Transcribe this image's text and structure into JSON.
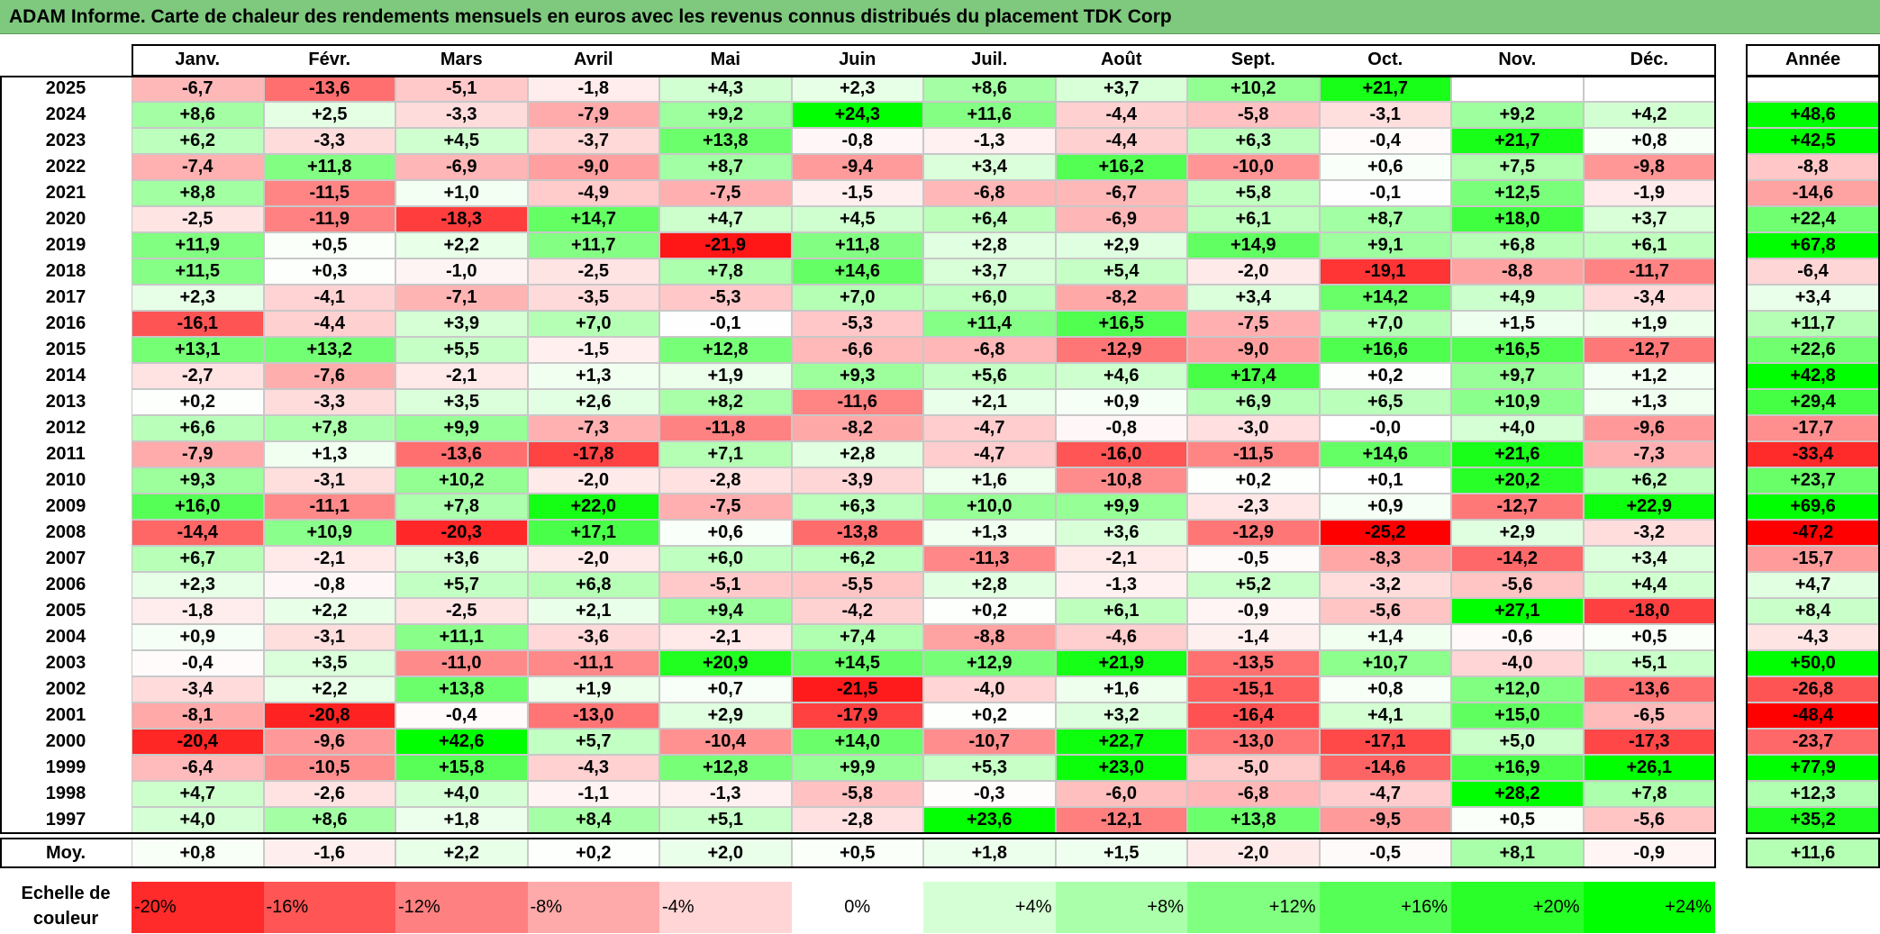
{
  "title": "ADAM Informe. Carte de chaleur des rendements mensuels en euros avec les revenus connus distribués du placement TDK Corp",
  "colors": {
    "title_bg": "#7fc97f",
    "positive": "#00ff00",
    "negative": "#ff0000",
    "neutral": "#ffffff"
  },
  "chart_data": {
    "type": "heatmap",
    "months": [
      "Janv.",
      "Févr.",
      "Mars",
      "Avril",
      "Mai",
      "Juin",
      "Juil.",
      "Août",
      "Sept.",
      "Oct.",
      "Nov.",
      "Déc."
    ],
    "year_header": "Année",
    "rows": [
      {
        "year": "2025",
        "values": [
          "-6,7",
          "-13,6",
          "-5,1",
          "-1,8",
          "+4,3",
          "+2,3",
          "+8,6",
          "+3,7",
          "+10,2",
          "+21,7",
          "",
          ""
        ],
        "annual": ""
      },
      {
        "year": "2024",
        "values": [
          "+8,6",
          "+2,5",
          "-3,3",
          "-7,9",
          "+9,2",
          "+24,3",
          "+11,6",
          "-4,4",
          "-5,8",
          "-3,1",
          "+9,2",
          "+4,2"
        ],
        "annual": "+48,6"
      },
      {
        "year": "2023",
        "values": [
          "+6,2",
          "-3,3",
          "+4,5",
          "-3,7",
          "+13,8",
          "-0,8",
          "-1,3",
          "-4,4",
          "+6,3",
          "-0,4",
          "+21,7",
          "+0,8"
        ],
        "annual": "+42,5"
      },
      {
        "year": "2022",
        "values": [
          "-7,4",
          "+11,8",
          "-6,9",
          "-9,0",
          "+8,7",
          "-9,4",
          "+3,4",
          "+16,2",
          "-10,0",
          "+0,6",
          "+7,5",
          "-9,8"
        ],
        "annual": "-8,8"
      },
      {
        "year": "2021",
        "values": [
          "+8,8",
          "-11,5",
          "+1,0",
          "-4,9",
          "-7,5",
          "-1,5",
          "-6,8",
          "-6,7",
          "+5,8",
          "-0,1",
          "+12,5",
          "-1,9"
        ],
        "annual": "-14,6"
      },
      {
        "year": "2020",
        "values": [
          "-2,5",
          "-11,9",
          "-18,3",
          "+14,7",
          "+4,7",
          "+4,5",
          "+6,4",
          "-6,9",
          "+6,1",
          "+8,7",
          "+18,0",
          "+3,7"
        ],
        "annual": "+22,4"
      },
      {
        "year": "2019",
        "values": [
          "+11,9",
          "+0,5",
          "+2,2",
          "+11,7",
          "-21,9",
          "+11,8",
          "+2,8",
          "+2,9",
          "+14,9",
          "+9,1",
          "+6,8",
          "+6,1"
        ],
        "annual": "+67,8"
      },
      {
        "year": "2018",
        "values": [
          "+11,5",
          "+0,3",
          "-1,0",
          "-2,5",
          "+7,8",
          "+14,6",
          "+3,7",
          "+5,4",
          "-2,0",
          "-19,1",
          "-8,8",
          "-11,7"
        ],
        "annual": "-6,4"
      },
      {
        "year": "2017",
        "values": [
          "+2,3",
          "-4,1",
          "-7,1",
          "-3,5",
          "-5,3",
          "+7,0",
          "+6,0",
          "-8,2",
          "+3,4",
          "+14,2",
          "+4,9",
          "-3,4"
        ],
        "annual": "+3,4"
      },
      {
        "year": "2016",
        "values": [
          "-16,1",
          "-4,4",
          "+3,9",
          "+7,0",
          "-0,1",
          "-5,3",
          "+11,4",
          "+16,5",
          "-7,5",
          "+7,0",
          "+1,5",
          "+1,9"
        ],
        "annual": "+11,7"
      },
      {
        "year": "2015",
        "values": [
          "+13,1",
          "+13,2",
          "+5,5",
          "-1,5",
          "+12,8",
          "-6,6",
          "-6,8",
          "-12,9",
          "-9,0",
          "+16,6",
          "+16,5",
          "-12,7"
        ],
        "annual": "+22,6"
      },
      {
        "year": "2014",
        "values": [
          "-2,7",
          "-7,6",
          "-2,1",
          "+1,3",
          "+1,9",
          "+9,3",
          "+5,6",
          "+4,6",
          "+17,4",
          "+0,2",
          "+9,7",
          "+1,2"
        ],
        "annual": "+42,8"
      },
      {
        "year": "2013",
        "values": [
          "+0,2",
          "-3,3",
          "+3,5",
          "+2,6",
          "+8,2",
          "-11,6",
          "+2,1",
          "+0,9",
          "+6,9",
          "+6,5",
          "+10,9",
          "+1,3"
        ],
        "annual": "+29,4"
      },
      {
        "year": "2012",
        "values": [
          "+6,6",
          "+7,8",
          "+9,9",
          "-7,3",
          "-11,8",
          "-8,2",
          "-4,7",
          "-0,8",
          "-3,0",
          "-0,0",
          "+4,0",
          "-9,6"
        ],
        "annual": "-17,7"
      },
      {
        "year": "2011",
        "values": [
          "-7,9",
          "+1,3",
          "-13,6",
          "-17,8",
          "+7,1",
          "+2,8",
          "-4,7",
          "-16,0",
          "-11,5",
          "+14,6",
          "+21,6",
          "-7,3"
        ],
        "annual": "-33,4"
      },
      {
        "year": "2010",
        "values": [
          "+9,3",
          "-3,1",
          "+10,2",
          "-2,0",
          "-2,8",
          "-3,9",
          "+1,6",
          "-10,8",
          "+0,2",
          "+0,1",
          "+20,2",
          "+6,2"
        ],
        "annual": "+23,7"
      },
      {
        "year": "2009",
        "values": [
          "+16,0",
          "-11,1",
          "+7,8",
          "+22,0",
          "-7,5",
          "+6,3",
          "+10,0",
          "+9,9",
          "-2,3",
          "+0,9",
          "-12,7",
          "+22,9"
        ],
        "annual": "+69,6"
      },
      {
        "year": "2008",
        "values": [
          "-14,4",
          "+10,9",
          "-20,3",
          "+17,1",
          "+0,6",
          "-13,8",
          "+1,3",
          "+3,6",
          "-12,9",
          "-25,2",
          "+2,9",
          "-3,2"
        ],
        "annual": "-47,2"
      },
      {
        "year": "2007",
        "values": [
          "+6,7",
          "-2,1",
          "+3,6",
          "-2,0",
          "+6,0",
          "+6,2",
          "-11,3",
          "-2,1",
          "-0,5",
          "-8,3",
          "-14,2",
          "+3,4"
        ],
        "annual": "-15,7"
      },
      {
        "year": "2006",
        "values": [
          "+2,3",
          "-0,8",
          "+5,7",
          "+6,8",
          "-5,1",
          "-5,5",
          "+2,8",
          "-1,3",
          "+5,2",
          "-3,2",
          "-5,6",
          "+4,4"
        ],
        "annual": "+4,7"
      },
      {
        "year": "2005",
        "values": [
          "-1,8",
          "+2,2",
          "-2,5",
          "+2,1",
          "+9,4",
          "-4,2",
          "+0,2",
          "+6,1",
          "-0,9",
          "-5,6",
          "+27,1",
          "-18,0"
        ],
        "annual": "+8,4"
      },
      {
        "year": "2004",
        "values": [
          "+0,9",
          "-3,1",
          "+11,1",
          "-3,6",
          "-2,1",
          "+7,4",
          "-8,8",
          "-4,6",
          "-1,4",
          "+1,4",
          "-0,6",
          "+0,5"
        ],
        "annual": "-4,3"
      },
      {
        "year": "2003",
        "values": [
          "-0,4",
          "+3,5",
          "-11,0",
          "-11,1",
          "+20,9",
          "+14,5",
          "+12,9",
          "+21,9",
          "-13,5",
          "+10,7",
          "-4,0",
          "+5,1"
        ],
        "annual": "+50,0"
      },
      {
        "year": "2002",
        "values": [
          "-3,4",
          "+2,2",
          "+13,8",
          "+1,9",
          "+0,7",
          "-21,5",
          "-4,0",
          "+1,6",
          "-15,1",
          "+0,8",
          "+12,0",
          "-13,6"
        ],
        "annual": "-26,8"
      },
      {
        "year": "2001",
        "values": [
          "-8,1",
          "-20,8",
          "-0,4",
          "-13,0",
          "+2,9",
          "-17,9",
          "+0,2",
          "+3,2",
          "-16,4",
          "+4,1",
          "+15,0",
          "-6,5"
        ],
        "annual": "-48,4"
      },
      {
        "year": "2000",
        "values": [
          "-20,4",
          "-9,6",
          "+42,6",
          "+5,7",
          "-10,4",
          "+14,0",
          "-10,7",
          "+22,7",
          "-13,0",
          "-17,1",
          "+5,0",
          "-17,3"
        ],
        "annual": "-23,7"
      },
      {
        "year": "1999",
        "values": [
          "-6,4",
          "-10,5",
          "+15,8",
          "-4,3",
          "+12,8",
          "+9,9",
          "+5,3",
          "+23,0",
          "-5,0",
          "-14,6",
          "+16,9",
          "+26,1"
        ],
        "annual": "+77,9"
      },
      {
        "year": "1998",
        "values": [
          "+4,7",
          "-2,6",
          "+4,0",
          "-1,1",
          "-1,3",
          "-5,8",
          "-0,3",
          "-6,0",
          "-6,8",
          "-4,7",
          "+28,2",
          "+7,8"
        ],
        "annual": "+12,3"
      },
      {
        "year": "1997",
        "values": [
          "+4,0",
          "+8,6",
          "+1,8",
          "+8,4",
          "+5,1",
          "-2,8",
          "+23,6",
          "-12,1",
          "+13,8",
          "-9,5",
          "+0,5",
          "-5,6"
        ],
        "annual": "+35,2"
      }
    ],
    "average": {
      "label": "Moy.",
      "values": [
        "+0,8",
        "-1,6",
        "+2,2",
        "+0,2",
        "+2,0",
        "+0,5",
        "+1,8",
        "+1,5",
        "-2,0",
        "-0,5",
        "+8,1",
        "-0,9"
      ],
      "annual": "+11,6"
    },
    "legend": {
      "label_line1": "Echelle de",
      "label_line2": "couleur",
      "steps": [
        {
          "label": "-20%",
          "value": -20
        },
        {
          "label": "-16%",
          "value": -16
        },
        {
          "label": "-12%",
          "value": -12
        },
        {
          "label": "-8%",
          "value": -8
        },
        {
          "label": "-4%",
          "value": -4
        },
        {
          "label": "0%",
          "value": 0
        },
        {
          "label": "+4%",
          "value": 4
        },
        {
          "label": "+8%",
          "value": 8
        },
        {
          "label": "+12%",
          "value": 12
        },
        {
          "label": "+16%",
          "value": 16
        },
        {
          "label": "+20%",
          "value": 20
        },
        {
          "label": "+24%",
          "value": 24
        }
      ]
    }
  }
}
